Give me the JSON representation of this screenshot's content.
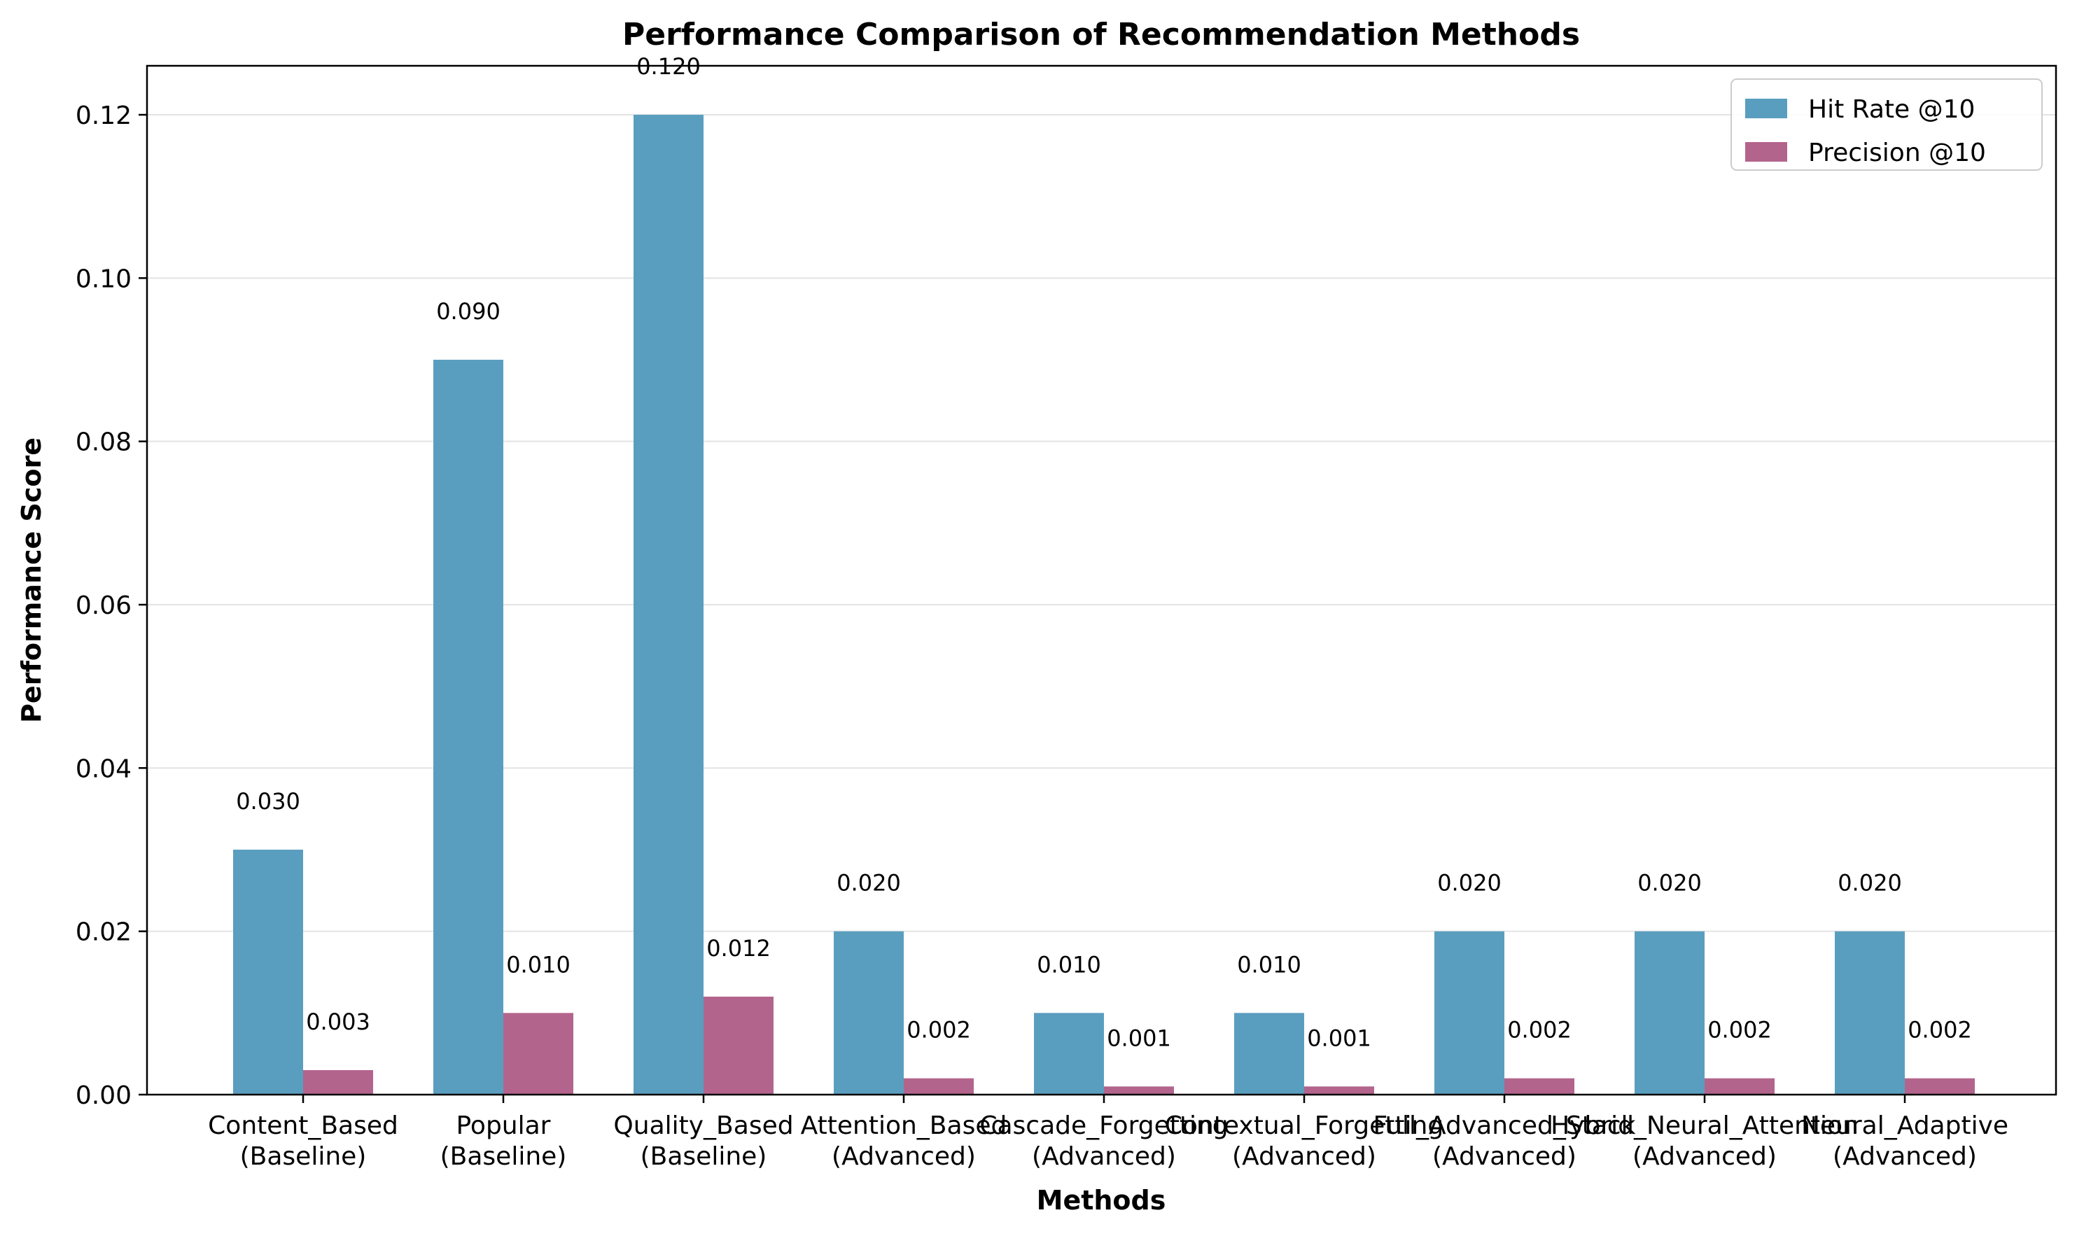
{
  "chart_data": {
    "type": "bar",
    "title": "Performance Comparison of Recommendation Methods",
    "xlabel": "Methods",
    "ylabel": "Performance Score",
    "categories": [
      [
        "Content_Based",
        "(Baseline)"
      ],
      [
        "Popular",
        "(Baseline)"
      ],
      [
        "Quality_Based",
        "(Baseline)"
      ],
      [
        "Attention_Based",
        "(Advanced)"
      ],
      [
        "Cascade_Forgetting",
        "(Advanced)"
      ],
      [
        "Contextual_Forgetting",
        "(Advanced)"
      ],
      [
        "Full_Advanced_Stack",
        "(Advanced)"
      ],
      [
        "Hybrid_Neural_Attention",
        "(Advanced)"
      ],
      [
        "Neural_Adaptive",
        "(Advanced)"
      ]
    ],
    "series": [
      {
        "name": "Hit Rate @10",
        "color": "#5a9ebf",
        "values": [
          0.03,
          0.09,
          0.12,
          0.02,
          0.01,
          0.01,
          0.02,
          0.02,
          0.02
        ],
        "labels": [
          "0.030",
          "0.090",
          "0.120",
          "0.020",
          "0.010",
          "0.010",
          "0.020",
          "0.020",
          "0.020"
        ]
      },
      {
        "name": "Precision @10",
        "color": "#b3648c",
        "values": [
          0.003,
          0.01,
          0.012,
          0.002,
          0.001,
          0.001,
          0.002,
          0.002,
          0.002
        ],
        "labels": [
          "0.003",
          "0.010",
          "0.012",
          "0.002",
          "0.001",
          "0.001",
          "0.002",
          "0.002",
          "0.002"
        ]
      }
    ],
    "ylim": [
      0,
      0.126
    ],
    "yticks": [
      "0.00",
      "0.02",
      "0.04",
      "0.06",
      "0.08",
      "0.10",
      "0.12"
    ],
    "ytick_values": [
      0,
      0.02,
      0.04,
      0.06,
      0.08,
      0.1,
      0.12
    ],
    "grid": "horizontal",
    "legend_position": "top-right"
  }
}
